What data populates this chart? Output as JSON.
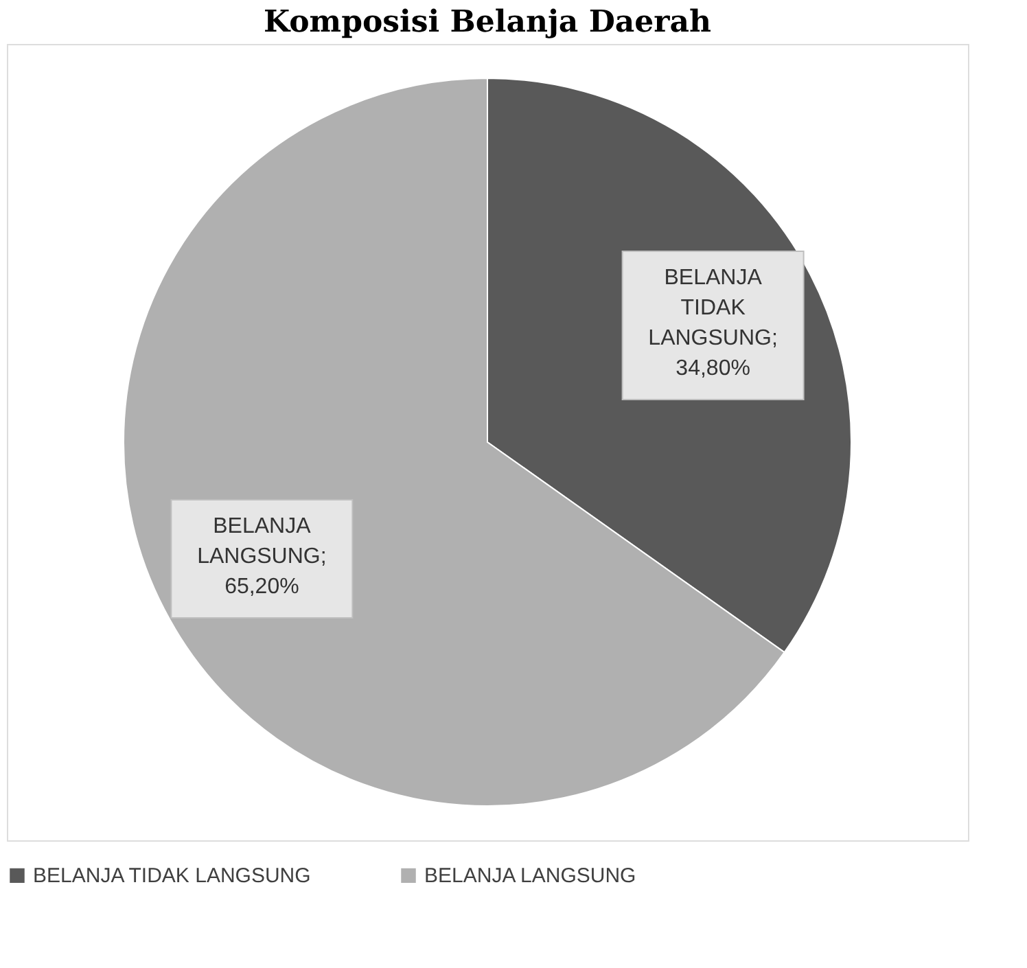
{
  "chart_data": {
    "type": "pie",
    "title": "Komposisi Belanja Daerah",
    "categories": [
      "BELANJA TIDAK LANGSUNG",
      "BELANJA LANGSUNG"
    ],
    "values": [
      34.8,
      65.2
    ],
    "colors": [
      "#595959",
      "#b0b0b0"
    ],
    "value_labels": [
      "BELANJA TIDAK LANGSUNG; 34,80%",
      "BELANJA LANGSUNG; 65,20%"
    ],
    "legend": "bottom"
  }
}
